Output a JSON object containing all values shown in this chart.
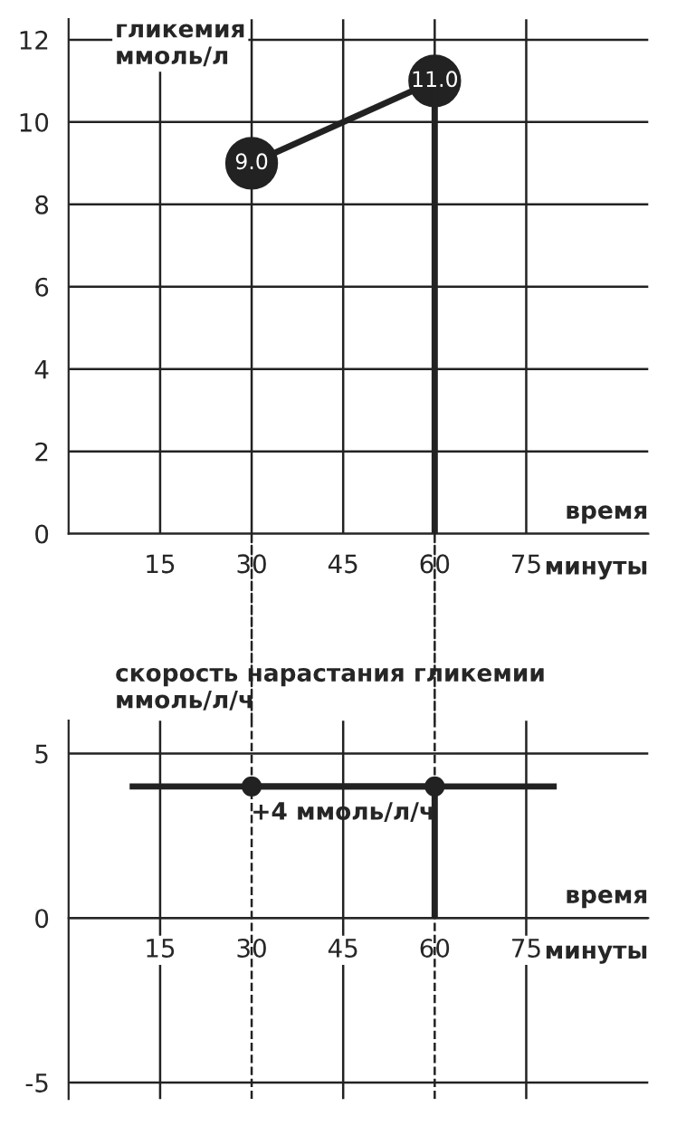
{
  "chart_data": [
    {
      "type": "line",
      "ylabel": "гликемия\nммоль/л",
      "xlabel": "время",
      "annotations": [
        "минуты"
      ],
      "xlim": [
        0,
        95
      ],
      "ylim": [
        0,
        12.5
      ],
      "xticks": [
        15,
        30,
        45,
        60,
        75
      ],
      "yticks": [
        0,
        2,
        4,
        6,
        8,
        10,
        12
      ],
      "grid": true,
      "series": [
        {
          "x": [
            30,
            60
          ],
          "values": [
            9,
            11
          ],
          "color": "#222222",
          "marker": "circle",
          "value_labels": [
            "9.0",
            "11.0"
          ]
        },
        {
          "x": [
            60,
            60
          ],
          "values": [
            0,
            11
          ],
          "color": "#222222"
        }
      ]
    },
    {
      "type": "line",
      "ylabel": "скорость нарастания гликемии\nммоль/л/ч",
      "xlabel": "время",
      "annotations": [
        "минуты",
        {
          "text": "+4 ммоль/л/ч",
          "x": 45,
          "y": 4
        }
      ],
      "xlim": [
        0,
        95
      ],
      "ylim": [
        -5.5,
        6
      ],
      "xticks": [
        15,
        30,
        45,
        60,
        75
      ],
      "yticks": [
        -5,
        0,
        5
      ],
      "grid": true,
      "ref_lines": [
        {
          "axis": "x",
          "value": 30,
          "line_style": "dashed"
        },
        {
          "axis": "x",
          "value": 60,
          "line_style": "dashed"
        }
      ],
      "series": [
        {
          "x": [
            10,
            80
          ],
          "values": [
            4,
            4
          ],
          "color": "#222222"
        },
        {
          "x": [
            30,
            60
          ],
          "values": [
            4,
            4
          ],
          "color": "#222222",
          "marker": "circle"
        },
        {
          "x": [
            60,
            60
          ],
          "values": [
            0,
            4
          ],
          "color": "#222222"
        }
      ]
    }
  ]
}
